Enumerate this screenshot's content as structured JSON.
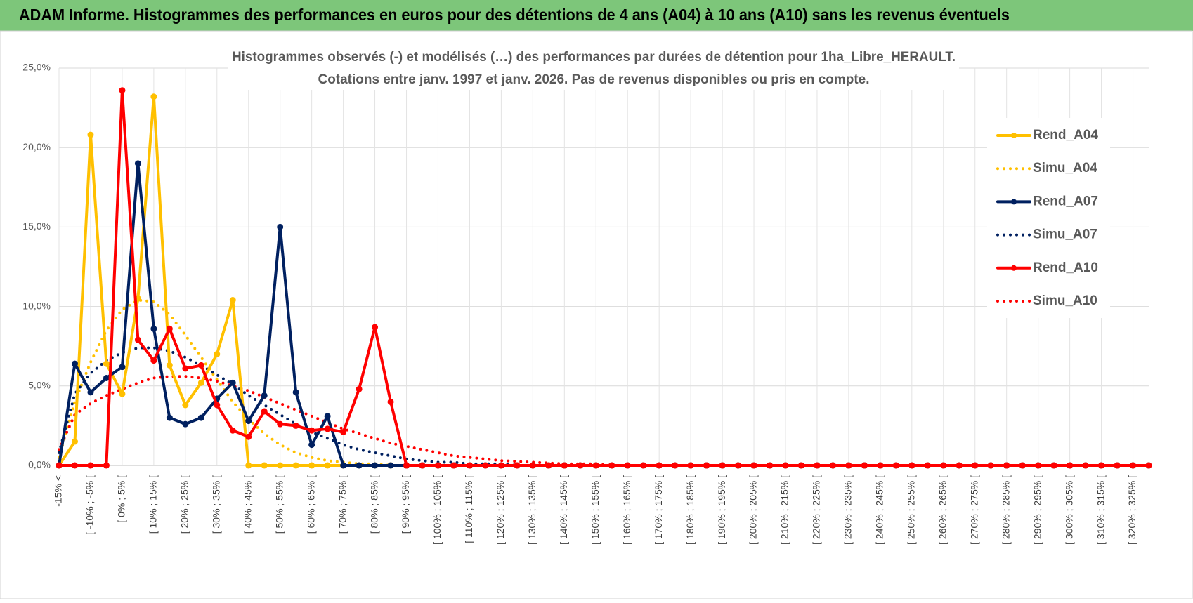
{
  "header": {
    "title": "ADAM Informe. Histogrammes des performances en euros pour des détentions de 4 ans (A04) à 10 ans (A10) sans les revenus éventuels"
  },
  "chart_data": {
    "type": "line",
    "title": "Histogrammes observés (-) et modélisés (…) des performances par durées de détention pour 1ha_Libre_HERAULT.",
    "subtitle": "Cotations entre janv. 1997 et janv. 2026. Pas de revenus disponibles ou pris en compte.",
    "categories": [
      "-15% <",
      null,
      "[ -10% ; -5% [",
      null,
      "[ 0% ; 5% [",
      null,
      "[ 10% ; 15% [",
      null,
      "[ 20% ; 25% [",
      null,
      "[ 30% ; 35% [",
      null,
      "[ 40% ; 45% [",
      null,
      "[ 50% ; 55% [",
      null,
      "[ 60% ; 65% [",
      null,
      "[ 70% ; 75% [",
      null,
      "[ 80% ; 85% [",
      null,
      "[ 90% ; 95% [",
      null,
      "[ 100% ; 105% [",
      null,
      "[ 110% ; 115% [",
      null,
      "[ 120% ; 125% [",
      null,
      "[ 130% ; 135% [",
      null,
      "[ 140% ; 145% [",
      null,
      "[ 150% ; 155% [",
      null,
      "[ 160% ; 165% [",
      null,
      "[ 170% ; 175% [",
      null,
      "[ 180% ; 185% [",
      null,
      "[ 190% ; 195% [",
      null,
      "[ 200% ; 205% [",
      null,
      "[ 210% ; 215% [",
      null,
      "[ 220% ; 225% [",
      null,
      "[ 230% ; 235% [",
      null,
      "[ 240% ; 245% [",
      null,
      "[ 250% ; 255% [",
      null,
      "[ 260% ; 265% [",
      null,
      "[ 270% ; 275% [",
      null,
      "[ 280% ; 285% [",
      null,
      "[ 290% ; 295% [",
      null,
      "[ 300% ; 305% [",
      null,
      "[ 310% ; 315% [",
      null,
      "[ 320% ; 325% [",
      null
    ],
    "series": [
      {
        "name": "Rend_A04",
        "color": "#FFC000",
        "style": "solid",
        "marker": true,
        "values": [
          0,
          1.5,
          20.8,
          6.4,
          4.5,
          10.5,
          23.2,
          6.3,
          3.8,
          5.2,
          7.0,
          10.4,
          0,
          0,
          0,
          0,
          0,
          0,
          0,
          0,
          0,
          0,
          0,
          0,
          0,
          0,
          0,
          0,
          0,
          0,
          0,
          0,
          0,
          0,
          0,
          0,
          0,
          0,
          0,
          0,
          0,
          0,
          0,
          0,
          0,
          0,
          0,
          0,
          0,
          0,
          0,
          0,
          0,
          0,
          0,
          0,
          0,
          0,
          0,
          0,
          0,
          0,
          0,
          0,
          0,
          0,
          0,
          0,
          0,
          0
        ]
      },
      {
        "name": "Simu_A04",
        "color": "#FFC000",
        "style": "dotted",
        "marker": false,
        "values": [
          0.5,
          4.0,
          6.5,
          8.5,
          9.8,
          10.4,
          10.3,
          9.5,
          8.2,
          6.8,
          5.4,
          4.0,
          2.9,
          2.0,
          1.3,
          0.8,
          0.5,
          0.3,
          0.2,
          0.1,
          0.1,
          0,
          0,
          0,
          0,
          0,
          0,
          0,
          0,
          0,
          0,
          0,
          0,
          0,
          0,
          0,
          0,
          0,
          0,
          0,
          0,
          0,
          0,
          0,
          0,
          0,
          0,
          0,
          0,
          0,
          0,
          0,
          0,
          0,
          0,
          0,
          0,
          0,
          0,
          0,
          0,
          0,
          0,
          0,
          0,
          0,
          0,
          0,
          0,
          0
        ]
      },
      {
        "name": "Rend_A07",
        "color": "#002060",
        "style": "solid",
        "marker": true,
        "values": [
          0,
          6.4,
          4.6,
          5.5,
          6.2,
          19.0,
          8.6,
          3.0,
          2.6,
          3.0,
          4.2,
          5.2,
          2.8,
          4.4,
          15.0,
          4.6,
          1.3,
          3.1,
          0,
          0,
          0,
          0,
          0,
          0,
          0,
          0,
          0,
          0,
          0,
          0,
          0,
          0,
          0,
          0,
          0,
          0,
          0,
          0,
          0,
          0,
          0,
          0,
          0,
          0,
          0,
          0,
          0,
          0,
          0,
          0,
          0,
          0,
          0,
          0,
          0,
          0,
          0,
          0,
          0,
          0,
          0,
          0,
          0,
          0,
          0,
          0,
          0,
          0,
          0,
          0
        ]
      },
      {
        "name": "Simu_A07",
        "color": "#002060",
        "style": "dotted",
        "marker": false,
        "values": [
          0.8,
          4.5,
          5.8,
          6.6,
          7.1,
          7.4,
          7.4,
          7.2,
          6.8,
          6.3,
          5.7,
          5.1,
          4.4,
          3.8,
          3.2,
          2.6,
          2.1,
          1.7,
          1.3,
          1.0,
          0.8,
          0.6,
          0.4,
          0.3,
          0.2,
          0.2,
          0.1,
          0.1,
          0.1,
          0,
          0,
          0,
          0,
          0,
          0,
          0,
          0,
          0,
          0,
          0,
          0,
          0,
          0,
          0,
          0,
          0,
          0,
          0,
          0,
          0,
          0,
          0,
          0,
          0,
          0,
          0,
          0,
          0,
          0,
          0,
          0,
          0,
          0,
          0,
          0,
          0,
          0,
          0,
          0,
          0
        ]
      },
      {
        "name": "Rend_A10",
        "color": "#FF0000",
        "style": "solid",
        "marker": true,
        "values": [
          0,
          0,
          0,
          0,
          23.6,
          7.9,
          6.6,
          8.6,
          6.1,
          6.3,
          3.8,
          2.2,
          1.8,
          3.4,
          2.6,
          2.5,
          2.2,
          2.3,
          2.1,
          4.8,
          8.7,
          4.0,
          0,
          0,
          0,
          0,
          0,
          0,
          0,
          0,
          0,
          0,
          0,
          0,
          0,
          0,
          0,
          0,
          0,
          0,
          0,
          0,
          0,
          0,
          0,
          0,
          0,
          0,
          0,
          0,
          0,
          0,
          0,
          0,
          0,
          0,
          0,
          0,
          0,
          0,
          0,
          0,
          0,
          0,
          0,
          0,
          0,
          0,
          0,
          0
        ]
      },
      {
        "name": "Simu_A10",
        "color": "#FF0000",
        "style": "dotted",
        "marker": false,
        "values": [
          1.0,
          3.2,
          3.9,
          4.4,
          4.8,
          5.2,
          5.5,
          5.6,
          5.6,
          5.5,
          5.3,
          5.0,
          4.7,
          4.3,
          3.9,
          3.5,
          3.1,
          2.7,
          2.3,
          2.0,
          1.7,
          1.4,
          1.2,
          1.0,
          0.8,
          0.6,
          0.5,
          0.4,
          0.3,
          0.25,
          0.2,
          0.15,
          0.1,
          0.1,
          0.1,
          0,
          0,
          0,
          0,
          0,
          0,
          0,
          0,
          0,
          0,
          0,
          0,
          0,
          0,
          0,
          0,
          0,
          0,
          0,
          0,
          0,
          0,
          0,
          0,
          0,
          0,
          0,
          0,
          0,
          0,
          0,
          0,
          0,
          0,
          0
        ]
      }
    ],
    "ylim": [
      0,
      25
    ],
    "yticks": [
      {
        "value": 0,
        "label": "0,0%"
      },
      {
        "value": 5,
        "label": "5,0%"
      },
      {
        "value": 10,
        "label": "10,0%"
      },
      {
        "value": 15,
        "label": "15,0%"
      },
      {
        "value": 20,
        "label": "20,0%"
      },
      {
        "value": 25,
        "label": "25,0%"
      }
    ],
    "grid": true,
    "legend": "right"
  }
}
